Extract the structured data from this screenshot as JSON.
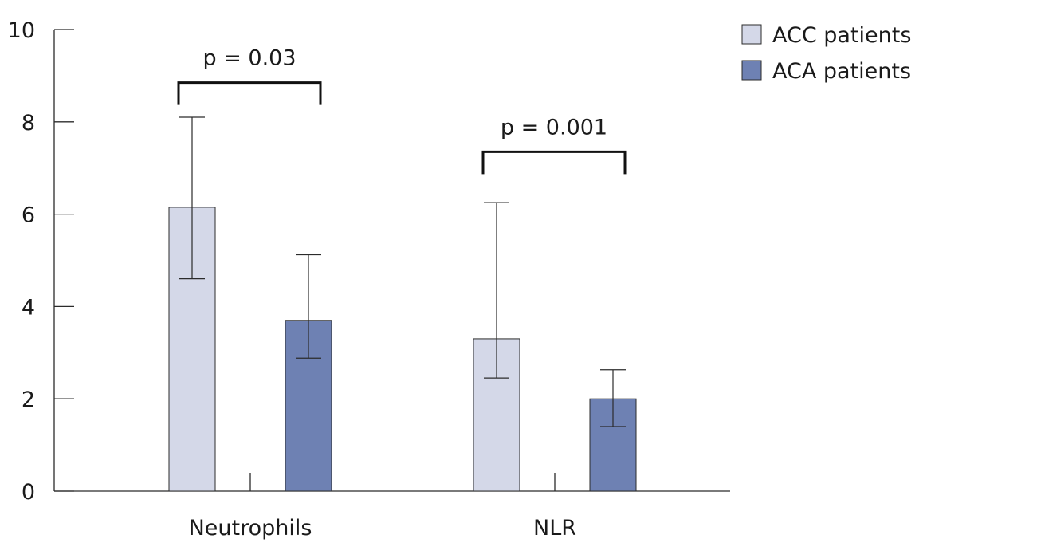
{
  "chart_data": {
    "type": "bar",
    "title": "",
    "xlabel": "",
    "ylabel": "",
    "ylim": [
      0,
      10
    ],
    "yticks": [
      0,
      2,
      4,
      6,
      8,
      10
    ],
    "categories": [
      "Neutrophils",
      "NLR"
    ],
    "series": [
      {
        "name": "ACC patients",
        "color": "#d4d8e8",
        "values": [
          6.15,
          3.3
        ],
        "error_low": [
          4.6,
          2.45
        ],
        "error_high": [
          8.1,
          6.25
        ]
      },
      {
        "name": "ACA patients",
        "color": "#6e81b3",
        "values": [
          3.7,
          2.0
        ],
        "error_low": [
          2.88,
          1.4
        ],
        "error_high": [
          5.12,
          2.63
        ]
      }
    ],
    "annotations": [
      {
        "category": "Neutrophils",
        "text": "p = 0.03",
        "bracket_y": 8.85
      },
      {
        "category": "NLR",
        "text": "p = 0.001",
        "bracket_y": 7.35
      }
    ],
    "legend": {
      "position": "top-right"
    },
    "grid": false
  }
}
